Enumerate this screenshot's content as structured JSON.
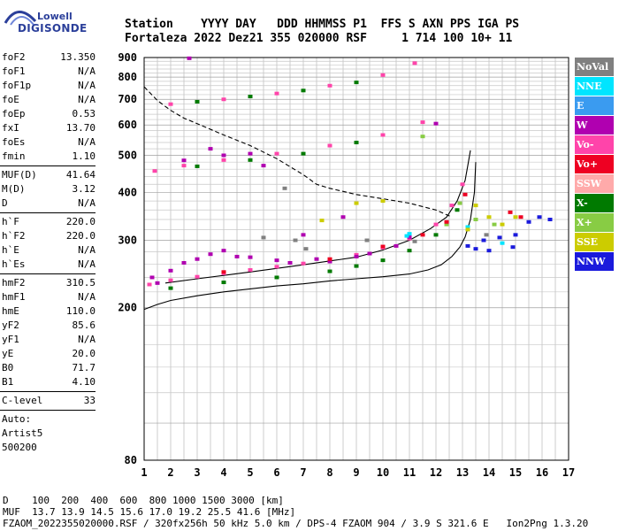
{
  "logo": {
    "brand_top": "Lowell",
    "brand_bottom": "DIGISONDE"
  },
  "header": {
    "line1": "Station    YYYY DAY   DDD HHMMSS P1  FFS S AXN PPS IGA PS",
    "line2": "Fortaleza 2022 Dez21 355 020000 RSF     1 714 100 10+ 11"
  },
  "params": [
    {
      "name": "foF2",
      "value": "13.350"
    },
    {
      "name": "foF1",
      "value": "N/A"
    },
    {
      "name": "foF1p",
      "value": "N/A"
    },
    {
      "name": "foE",
      "value": "N/A"
    },
    {
      "name": "foEp",
      "value": "0.53"
    },
    {
      "name": "fxI",
      "value": "13.70"
    },
    {
      "name": "foEs",
      "value": "N/A"
    },
    {
      "name": "fmin",
      "value": "1.10"
    },
    {
      "sep": true
    },
    {
      "name": "MUF(D)",
      "value": "41.64"
    },
    {
      "name": "M(D)",
      "value": "3.12"
    },
    {
      "name": "D",
      "value": "N/A"
    },
    {
      "sep": true
    },
    {
      "name": "h`F",
      "value": "220.0"
    },
    {
      "name": "h`F2",
      "value": "220.0"
    },
    {
      "name": "h`E",
      "value": "N/A"
    },
    {
      "name": "h`Es",
      "value": "N/A"
    },
    {
      "sep": true
    },
    {
      "name": "hmF2",
      "value": "310.5"
    },
    {
      "name": "hmF1",
      "value": "N/A"
    },
    {
      "name": "hmE",
      "value": "110.0"
    },
    {
      "name": "yF2",
      "value": "85.6"
    },
    {
      "name": "yF1",
      "value": "N/A"
    },
    {
      "name": "yE",
      "value": "20.0"
    },
    {
      "name": "B0",
      "value": "71.7"
    },
    {
      "name": "B1",
      "value": "4.10"
    },
    {
      "sep": true
    },
    {
      "name": "C-level",
      "value": "33"
    },
    {
      "sep": true
    },
    {
      "text": "Auto:"
    },
    {
      "text": "Artist5"
    },
    {
      "text": "500200"
    }
  ],
  "legend": [
    {
      "label": "NoVal",
      "color": "#808080"
    },
    {
      "label": "NNE",
      "color": "#00e5ff"
    },
    {
      "label": "E",
      "color": "#3a9bf0"
    },
    {
      "label": "W",
      "color": "#b000b0"
    },
    {
      "label": "Vo-",
      "color": "#ff44aa"
    },
    {
      "label": "Vo+",
      "color": "#ee0022"
    },
    {
      "label": "SSW",
      "color": "#ffaaaa"
    },
    {
      "label": "X-",
      "color": "#007a00"
    },
    {
      "label": "X+",
      "color": "#88cc44"
    },
    {
      "label": "SSE",
      "color": "#cccc00"
    },
    {
      "label": "NNW",
      "color": "#1a1adc"
    }
  ],
  "chart_data": {
    "type": "scatter",
    "title": "",
    "xlabel": "",
    "ylabel": "",
    "xlim": [
      1,
      17
    ],
    "ylim": [
      80,
      900
    ],
    "x_ticks": [
      "1",
      "2",
      "3",
      "4",
      "5",
      "6",
      "7",
      "8",
      "9",
      "10",
      "11",
      "12",
      "13",
      "14",
      "15",
      "16",
      "17"
    ],
    "y_ticks": [
      "80",
      "200",
      "300",
      "400",
      "500",
      "600",
      "700",
      "800",
      "900"
    ],
    "y_scale": "log",
    "grid": true,
    "series": [
      {
        "name": "Vo-",
        "color": "#ff44aa",
        "points": [
          [
            1.2,
            230
          ],
          [
            2,
            236
          ],
          [
            3,
            241
          ],
          [
            4,
            246
          ],
          [
            5,
            251
          ],
          [
            6,
            256
          ],
          [
            7,
            261
          ],
          [
            8,
            267
          ],
          [
            9,
            275
          ],
          [
            10,
            287
          ],
          [
            11,
            303
          ],
          [
            12,
            330
          ],
          [
            12.6,
            370
          ],
          [
            13,
            420
          ],
          [
            1.4,
            455
          ],
          [
            2.5,
            470
          ],
          [
            4,
            486
          ],
          [
            6,
            505
          ],
          [
            8,
            530
          ],
          [
            10,
            565
          ],
          [
            11.5,
            610
          ],
          [
            2,
            680
          ],
          [
            4,
            700
          ],
          [
            6,
            725
          ],
          [
            8,
            760
          ],
          [
            10,
            810
          ],
          [
            11.2,
            870
          ]
        ]
      },
      {
        "name": "W",
        "color": "#b000b0",
        "points": [
          [
            1.3,
            240
          ],
          [
            2.5,
            262
          ],
          [
            3.5,
            276
          ],
          [
            4.5,
            272
          ],
          [
            6,
            266
          ],
          [
            7.5,
            268
          ],
          [
            9,
            272
          ],
          [
            10.5,
            290
          ],
          [
            2.5,
            485
          ],
          [
            4,
            500
          ],
          [
            5,
            505
          ],
          [
            3.5,
            520
          ],
          [
            5.5,
            470
          ],
          [
            2.7,
            896
          ],
          [
            12,
            605
          ],
          [
            7,
            310
          ],
          [
            8.5,
            345
          ],
          [
            1.5,
            232
          ],
          [
            2,
            250
          ],
          [
            3,
            268
          ],
          [
            4,
            282
          ],
          [
            5,
            271
          ],
          [
            6.5,
            262
          ],
          [
            8,
            264
          ],
          [
            9.5,
            277
          ],
          [
            11,
            306
          ]
        ]
      },
      {
        "name": "X-",
        "color": "#007a00",
        "points": [
          [
            2,
            225
          ],
          [
            4,
            233
          ],
          [
            6,
            240
          ],
          [
            8,
            249
          ],
          [
            9,
            257
          ],
          [
            10,
            266
          ],
          [
            11,
            282
          ],
          [
            12,
            310
          ],
          [
            12.8,
            360
          ],
          [
            3,
            468
          ],
          [
            5,
            486
          ],
          [
            7,
            505
          ],
          [
            9,
            540
          ],
          [
            3,
            690
          ],
          [
            5,
            712
          ],
          [
            7,
            738
          ],
          [
            9,
            775
          ]
        ]
      },
      {
        "name": "X+",
        "color": "#88cc44",
        "points": [
          [
            12.4,
            330
          ],
          [
            12.9,
            375
          ],
          [
            13.5,
            340
          ],
          [
            14.2,
            330
          ],
          [
            11.5,
            560
          ]
        ]
      },
      {
        "name": "NNE",
        "color": "#00e5ff",
        "points": [
          [
            10.9,
            308
          ],
          [
            11,
            312
          ],
          [
            13.2,
            325
          ],
          [
            14.5,
            295
          ]
        ]
      },
      {
        "name": "Vo+",
        "color": "#ee0022",
        "points": [
          [
            4,
            248
          ],
          [
            8,
            268
          ],
          [
            10,
            289
          ],
          [
            11.5,
            310
          ],
          [
            12.4,
            335
          ],
          [
            13.1,
            395
          ],
          [
            14.8,
            355
          ],
          [
            15.2,
            345
          ]
        ]
      },
      {
        "name": "SSE",
        "color": "#cccc00",
        "points": [
          [
            13.2,
            320
          ],
          [
            13.5,
            370
          ],
          [
            14,
            345
          ],
          [
            14.5,
            330
          ],
          [
            15,
            345
          ],
          [
            9,
            375
          ],
          [
            10,
            380
          ],
          [
            7.7,
            338
          ]
        ]
      },
      {
        "name": "NNW",
        "color": "#1a1adc",
        "points": [
          [
            13.2,
            290
          ],
          [
            13.8,
            300
          ],
          [
            14.4,
            305
          ],
          [
            15,
            310
          ],
          [
            15.5,
            335
          ],
          [
            14,
            282
          ],
          [
            13.5,
            285
          ],
          [
            14.9,
            288
          ],
          [
            15.9,
            345
          ],
          [
            16.3,
            340
          ]
        ]
      },
      {
        "name": "NoVal",
        "color": "#808080",
        "points": [
          [
            6.7,
            300
          ],
          [
            7.1,
            285
          ],
          [
            5.5,
            305
          ],
          [
            6.3,
            410
          ],
          [
            9.4,
            300
          ],
          [
            11.2,
            298
          ],
          [
            13.9,
            310
          ]
        ]
      }
    ],
    "traces": [
      {
        "style": "solid",
        "points": [
          [
            1,
            198
          ],
          [
            1.5,
            204
          ],
          [
            2,
            209
          ],
          [
            3,
            215
          ],
          [
            4,
            220
          ],
          [
            5,
            224
          ],
          [
            6,
            228
          ],
          [
            7,
            231
          ],
          [
            8,
            235
          ],
          [
            9,
            238
          ],
          [
            10,
            241
          ],
          [
            11,
            245
          ],
          [
            11.7,
            251
          ],
          [
            12.2,
            259
          ],
          [
            12.6,
            272
          ],
          [
            12.9,
            288
          ],
          [
            13.1,
            306
          ],
          [
            13.3,
            340
          ],
          [
            13.45,
            400
          ],
          [
            13.5,
            480
          ]
        ]
      },
      {
        "style": "solid",
        "points": [
          [
            1.8,
            232
          ],
          [
            3,
            238
          ],
          [
            5,
            248
          ],
          [
            7,
            259
          ],
          [
            9,
            271
          ],
          [
            10,
            283
          ],
          [
            11,
            300
          ],
          [
            11.8,
            322
          ],
          [
            12.4,
            345
          ],
          [
            12.8,
            380
          ],
          [
            13.1,
            430
          ],
          [
            13.2,
            470
          ],
          [
            13.3,
            515
          ]
        ]
      },
      {
        "style": "dashed",
        "points": [
          [
            1,
            755
          ],
          [
            1.5,
            695
          ],
          [
            2,
            655
          ],
          [
            2.5,
            625
          ],
          [
            3,
            605
          ],
          [
            4,
            565
          ],
          [
            5,
            530
          ],
          [
            6,
            490
          ],
          [
            7,
            445
          ],
          [
            7.5,
            420
          ],
          [
            8,
            410
          ],
          [
            9,
            395
          ],
          [
            10,
            385
          ],
          [
            11,
            375
          ],
          [
            12,
            360
          ],
          [
            12.6,
            345
          ]
        ]
      }
    ]
  },
  "footer": {
    "line1": "D    100  200  400  600  800 1000 1500 3000 [km]",
    "line2": "MUF  13.7 13.9 14.5 15.6 17.0 19.2 25.5 41.6 [MHz]",
    "line3": "FZAOM_2022355020000.RSF / 320fx256h 50 kHz 5.0 km / DPS-4 FZAOM 904 / 3.9 S 321.6 E   Ion2Png 1.3.20"
  }
}
